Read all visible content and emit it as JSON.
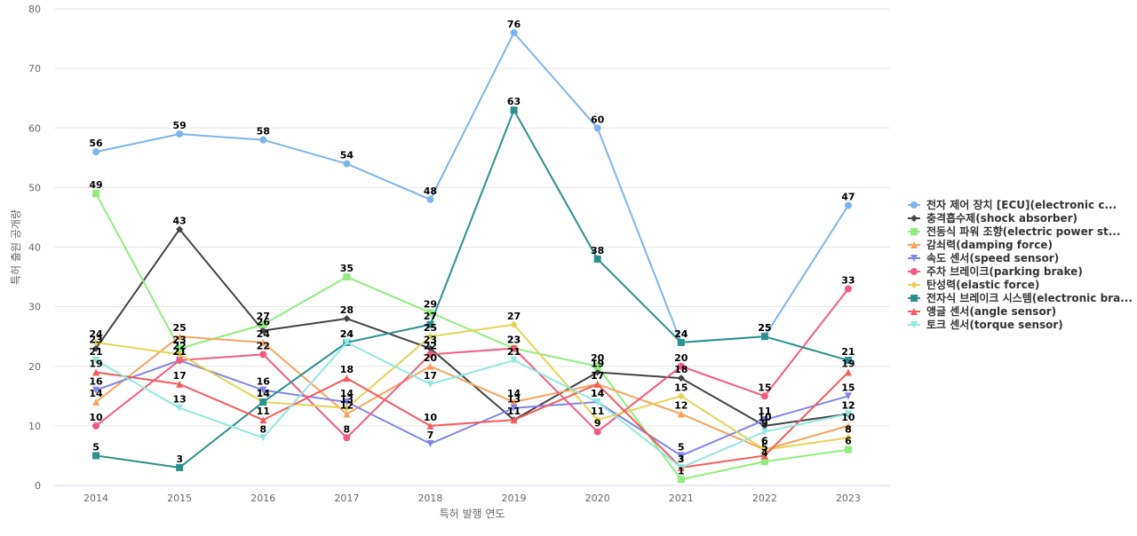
{
  "chart_data": {
    "type": "line",
    "title": "",
    "xlabel": "특허 발행 연도",
    "ylabel": "특허 출원 공개량",
    "categories": [
      "2014",
      "2015",
      "2016",
      "2017",
      "2018",
      "2019",
      "2020",
      "2021",
      "2022",
      "2023"
    ],
    "ylim": [
      0,
      80
    ],
    "yticks": [
      0,
      10,
      20,
      30,
      40,
      50,
      60,
      70,
      80
    ],
    "grid": true,
    "legend_position": "right",
    "series": [
      {
        "name": "전자 제어 장치 [ECU](electronic c...",
        "color": "#7cb5ec",
        "marker": "circle",
        "values": [
          56,
          59,
          58,
          54,
          48,
          76,
          60,
          24,
          25,
          47
        ]
      },
      {
        "name": "충격흡수제(shock absorber)",
        "color": "#434348",
        "marker": "diamond",
        "values": [
          23,
          43,
          26,
          28,
          23,
          11,
          19,
          18,
          10,
          12
        ]
      },
      {
        "name": "전동식 파워 조향(electric power st...",
        "color": "#90ed7d",
        "marker": "square",
        "values": [
          49,
          23,
          27,
          35,
          29,
          23,
          20,
          1,
          4,
          6
        ]
      },
      {
        "name": "감쇠력(damping force)",
        "color": "#f7a35c",
        "marker": "triangle",
        "values": [
          14,
          25,
          24,
          12,
          20,
          14,
          17,
          12,
          6,
          10
        ]
      },
      {
        "name": "속도 센서(speed sensor)",
        "color": "#8085e9",
        "marker": "triangle-down",
        "values": [
          16,
          21,
          16,
          14,
          7,
          13,
          14,
          5,
          11,
          15
        ]
      },
      {
        "name": "주차 브레이크(parking brake)",
        "color": "#f15c80",
        "marker": "circle",
        "values": [
          10,
          21,
          22,
          8,
          22,
          23,
          9,
          20,
          15,
          33
        ]
      },
      {
        "name": "탄성력(elastic force)",
        "color": "#e4d354",
        "marker": "diamond",
        "values": [
          24,
          22,
          14,
          13,
          25,
          27,
          11,
          15,
          6,
          8
        ]
      },
      {
        "name": "전자식 브레이크 시스템(electronic bra...",
        "color": "#2b908f",
        "marker": "square",
        "values": [
          5,
          3,
          14,
          24,
          27,
          63,
          38,
          24,
          25,
          21
        ]
      },
      {
        "name": "앵글 센서(angle sensor)",
        "color": "#f45b5b",
        "marker": "triangle",
        "values": [
          19,
          17,
          11,
          18,
          10,
          11,
          17,
          3,
          5,
          19
        ]
      },
      {
        "name": "토크 센서(torque sensor)",
        "color": "#91e8e1",
        "marker": "triangle-down",
        "values": [
          21,
          13,
          8,
          24,
          17,
          21,
          14,
          3,
          9,
          12
        ]
      }
    ]
  }
}
